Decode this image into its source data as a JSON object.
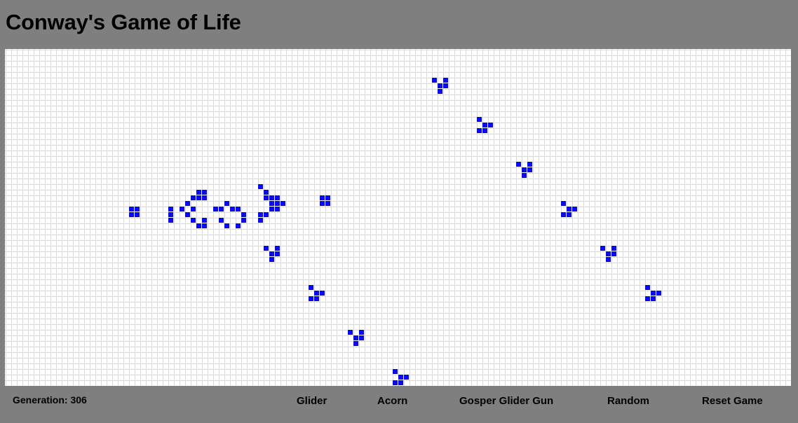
{
  "title": "Conway's Game of Life",
  "status": {
    "generation_label": "Generation:",
    "generation": "306"
  },
  "controls": {
    "glider": "Glider",
    "acorn": "Acorn",
    "gosper": "Gosper Glider Gun",
    "random": "Random",
    "reset": "Reset Game"
  },
  "colors": {
    "background": "#7f7f7f",
    "board": "#ffffff",
    "grid_line": "#d9d9d9",
    "live_cell": "#0b0be8"
  },
  "live_cells": [
    [
      22,
      28
    ],
    [
      23,
      28
    ],
    [
      22,
      29
    ],
    [
      23,
      29
    ],
    [
      29,
      28
    ],
    [
      29,
      29
    ],
    [
      29,
      30
    ],
    [
      31,
      28
    ],
    [
      32,
      27
    ],
    [
      33,
      26
    ],
    [
      34,
      26
    ],
    [
      33,
      28
    ],
    [
      32,
      29
    ],
    [
      33,
      30
    ],
    [
      34,
      31
    ],
    [
      35,
      31
    ],
    [
      34,
      25
    ],
    [
      35,
      25
    ],
    [
      35,
      26
    ],
    [
      35,
      30
    ],
    [
      37,
      28
    ],
    [
      38,
      28
    ],
    [
      39,
      27
    ],
    [
      40,
      28
    ],
    [
      41,
      28
    ],
    [
      38,
      30
    ],
    [
      39,
      31
    ],
    [
      41,
      31
    ],
    [
      42,
      29
    ],
    [
      42,
      30
    ],
    [
      45,
      24
    ],
    [
      46,
      25
    ],
    [
      47,
      26
    ],
    [
      47,
      27
    ],
    [
      47,
      28
    ],
    [
      46,
      29
    ],
    [
      45,
      30
    ],
    [
      48,
      26
    ],
    [
      48,
      27
    ],
    [
      48,
      28
    ],
    [
      49,
      27
    ],
    [
      46,
      26
    ],
    [
      45,
      29
    ],
    [
      56,
      26
    ],
    [
      57,
      26
    ],
    [
      56,
      27
    ],
    [
      57,
      27
    ],
    [
      76,
      5
    ],
    [
      78,
      5
    ],
    [
      77,
      6
    ],
    [
      78,
      6
    ],
    [
      77,
      7
    ],
    [
      84,
      12
    ],
    [
      85,
      13
    ],
    [
      86,
      13
    ],
    [
      84,
      14
    ],
    [
      85,
      14
    ],
    [
      91,
      20
    ],
    [
      93,
      20
    ],
    [
      92,
      21
    ],
    [
      93,
      21
    ],
    [
      92,
      22
    ],
    [
      99,
      27
    ],
    [
      100,
      28
    ],
    [
      101,
      28
    ],
    [
      99,
      29
    ],
    [
      100,
      29
    ],
    [
      106,
      35
    ],
    [
      108,
      35
    ],
    [
      107,
      36
    ],
    [
      108,
      36
    ],
    [
      107,
      37
    ],
    [
      114,
      42
    ],
    [
      115,
      43
    ],
    [
      116,
      43
    ],
    [
      114,
      44
    ],
    [
      115,
      44
    ],
    [
      46,
      35
    ],
    [
      48,
      35
    ],
    [
      47,
      36
    ],
    [
      48,
      36
    ],
    [
      47,
      37
    ],
    [
      54,
      42
    ],
    [
      55,
      43
    ],
    [
      56,
      43
    ],
    [
      54,
      44
    ],
    [
      55,
      44
    ],
    [
      61,
      50
    ],
    [
      63,
      50
    ],
    [
      62,
      51
    ],
    [
      63,
      51
    ],
    [
      62,
      52
    ],
    [
      69,
      57
    ],
    [
      70,
      58
    ],
    [
      71,
      58
    ],
    [
      69,
      59
    ],
    [
      70,
      59
    ]
  ]
}
